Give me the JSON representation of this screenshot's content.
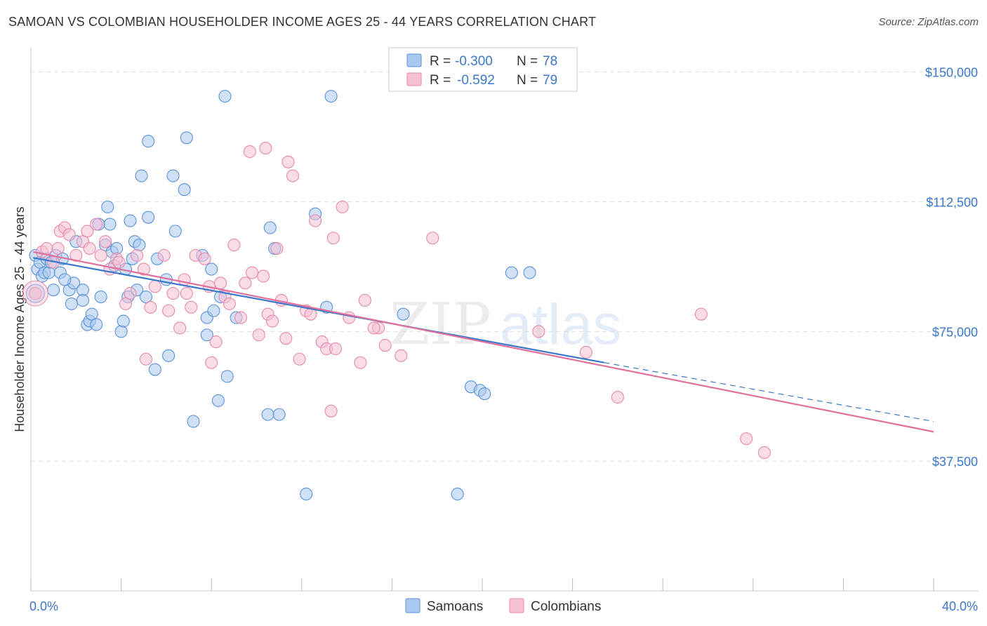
{
  "header": {
    "title": "SAMOAN VS COLOMBIAN HOUSEHOLDER INCOME AGES 25 - 44 YEARS CORRELATION CHART",
    "source": "Source: ZipAtlas.com"
  },
  "watermark": {
    "part1": "ZIP",
    "part2": "atlas"
  },
  "legend_box": {
    "rows": [
      {
        "r_label": "R = ",
        "r_value": "-0.300",
        "n_label": "N = ",
        "n_value": "78"
      },
      {
        "r_label": "R = ",
        "r_value": "-0.592",
        "n_label": "N = ",
        "n_value": "79"
      }
    ]
  },
  "bottom_legend": {
    "items": [
      "Samoans",
      "Colombians"
    ]
  },
  "colors": {
    "samoans_fill": "#a9c8ef",
    "samoans_stroke": "#5b93d9",
    "samoans_line": "#3a78c9",
    "colombians_fill": "#f6c0d3",
    "colombians_stroke": "#e58aac",
    "colombians_line": "#e0709a",
    "grid": "#dddddd",
    "axis_text": "#3a78c9"
  },
  "chart_data": {
    "type": "scatter",
    "title": "SAMOAN VS COLOMBIAN HOUSEHOLDER INCOME AGES 25 - 44 YEARS CORRELATION CHART",
    "xlabel": "",
    "ylabel": "Householder Income Ages 25 - 44 years",
    "xlim": [
      0,
      40
    ],
    "ylim": [
      0,
      155000
    ],
    "x_tick_labels": [
      "0.0%",
      "40.0%"
    ],
    "y_ticks": [
      37500,
      75000,
      112500,
      150000
    ],
    "y_tick_labels": [
      "$37,500",
      "$75,000",
      "$112,500",
      "$150,000"
    ],
    "grid": true,
    "legend_position": "top-center",
    "series": [
      {
        "name": "Samoans",
        "R": -0.3,
        "N": 78,
        "trend": {
          "x": [
            0.1,
            25.4
          ],
          "y": [
            96300,
            66000
          ],
          "dashed_to": [
            40.0,
            49000
          ]
        },
        "points": [
          [
            0.2,
            97000
          ],
          [
            0.3,
            93000
          ],
          [
            0.4,
            95000
          ],
          [
            0.5,
            91000
          ],
          [
            0.6,
            92000
          ],
          [
            0.7,
            96000
          ],
          [
            0.8,
            92000
          ],
          [
            0.9,
            95000
          ],
          [
            1.0,
            87000
          ],
          [
            1.1,
            97000
          ],
          [
            1.3,
            92000
          ],
          [
            1.4,
            96000
          ],
          [
            1.7,
            87000
          ],
          [
            1.8,
            83000
          ],
          [
            1.9,
            89000
          ],
          [
            2.0,
            101000
          ],
          [
            2.3,
            87000
          ],
          [
            2.3,
            84000
          ],
          [
            2.5,
            77000
          ],
          [
            2.6,
            78000
          ],
          [
            2.7,
            80000
          ],
          [
            2.9,
            77000
          ],
          [
            3.1,
            85000
          ],
          [
            3.3,
            100000
          ],
          [
            3.4,
            111000
          ],
          [
            3.5,
            106000
          ],
          [
            3.6,
            98000
          ],
          [
            3.7,
            94000
          ],
          [
            3.8,
            99000
          ],
          [
            4.0,
            75000
          ],
          [
            4.1,
            78000
          ],
          [
            4.4,
            107000
          ],
          [
            4.5,
            96000
          ],
          [
            4.3,
            85000
          ],
          [
            4.7,
            87000
          ],
          [
            4.6,
            101000
          ],
          [
            5.1,
            85000
          ],
          [
            4.9,
            120000
          ],
          [
            5.2,
            108000
          ],
          [
            5.6,
            96000
          ],
          [
            5.5,
            64000
          ],
          [
            5.2,
            130000
          ],
          [
            6.0,
            90000
          ],
          [
            6.1,
            68000
          ],
          [
            6.3,
            120000
          ],
          [
            6.4,
            104000
          ],
          [
            6.9,
            131000
          ],
          [
            7.2,
            49000
          ],
          [
            7.6,
            97000
          ],
          [
            7.8,
            79000
          ],
          [
            7.8,
            74000
          ],
          [
            8.0,
            93000
          ],
          [
            8.1,
            81000
          ],
          [
            8.3,
            55000
          ],
          [
            8.4,
            85000
          ],
          [
            8.6,
            143000
          ],
          [
            8.7,
            62000
          ],
          [
            9.1,
            79000
          ],
          [
            10.5,
            51000
          ],
          [
            10.6,
            105000
          ],
          [
            10.8,
            99000
          ],
          [
            11.0,
            51000
          ],
          [
            12.2,
            28000
          ],
          [
            12.6,
            109000
          ],
          [
            13.1,
            82000
          ],
          [
            13.3,
            143000
          ],
          [
            16.5,
            80000
          ],
          [
            18.9,
            28000
          ],
          [
            19.5,
            59000
          ],
          [
            19.9,
            58000
          ],
          [
            20.1,
            57000
          ],
          [
            21.3,
            92000
          ],
          [
            22.1,
            92000
          ],
          [
            4.8,
            100000
          ],
          [
            3.0,
            106000
          ],
          [
            6.8,
            116000
          ],
          [
            4.2,
            93000
          ],
          [
            1.5,
            90000
          ]
        ]
      },
      {
        "name": "Colombians",
        "R": -0.592,
        "N": 79,
        "trend": {
          "x": [
            0.1,
            40.0
          ],
          "y": [
            98000,
            46000
          ]
        },
        "points": [
          [
            0.2,
            86000
          ],
          [
            0.5,
            98000
          ],
          [
            0.7,
            99000
          ],
          [
            1.0,
            95000
          ],
          [
            1.2,
            99000
          ],
          [
            1.3,
            104000
          ],
          [
            1.5,
            105000
          ],
          [
            1.7,
            103000
          ],
          [
            2.0,
            97000
          ],
          [
            2.3,
            101000
          ],
          [
            2.5,
            104000
          ],
          [
            2.6,
            99000
          ],
          [
            2.9,
            106000
          ],
          [
            3.1,
            97000
          ],
          [
            3.3,
            101000
          ],
          [
            3.5,
            93000
          ],
          [
            3.8,
            96000
          ],
          [
            4.2,
            83000
          ],
          [
            4.4,
            86000
          ],
          [
            4.7,
            97000
          ],
          [
            5.0,
            93000
          ],
          [
            5.1,
            67000
          ],
          [
            5.3,
            82000
          ],
          [
            5.5,
            88000
          ],
          [
            5.9,
            97000
          ],
          [
            6.1,
            81000
          ],
          [
            6.3,
            86000
          ],
          [
            6.6,
            76000
          ],
          [
            6.8,
            90000
          ],
          [
            6.9,
            86000
          ],
          [
            7.1,
            82000
          ],
          [
            7.3,
            97000
          ],
          [
            7.7,
            96000
          ],
          [
            7.9,
            88000
          ],
          [
            8.0,
            66000
          ],
          [
            8.2,
            72000
          ],
          [
            8.4,
            89000
          ],
          [
            8.6,
            85000
          ],
          [
            8.8,
            83000
          ],
          [
            9.0,
            100000
          ],
          [
            9.3,
            79000
          ],
          [
            9.5,
            89000
          ],
          [
            9.8,
            92000
          ],
          [
            10.1,
            74000
          ],
          [
            10.3,
            91000
          ],
          [
            10.5,
            80000
          ],
          [
            10.7,
            78000
          ],
          [
            10.9,
            99000
          ],
          [
            11.1,
            84000
          ],
          [
            11.3,
            73000
          ],
          [
            11.6,
            120000
          ],
          [
            11.9,
            67000
          ],
          [
            12.2,
            81000
          ],
          [
            12.4,
            80000
          ],
          [
            12.6,
            107000
          ],
          [
            12.9,
            72000
          ],
          [
            13.1,
            70000
          ],
          [
            13.3,
            52000
          ],
          [
            13.5,
            70000
          ],
          [
            13.8,
            111000
          ],
          [
            14.1,
            79000
          ],
          [
            14.6,
            66000
          ],
          [
            14.8,
            84000
          ],
          [
            15.4,
            76000
          ],
          [
            15.7,
            71000
          ],
          [
            16.4,
            68000
          ],
          [
            17.8,
            102000
          ],
          [
            22.5,
            75000
          ],
          [
            24.6,
            69000
          ],
          [
            26.0,
            56000
          ],
          [
            29.7,
            80000
          ],
          [
            31.7,
            44000
          ],
          [
            32.5,
            40000
          ],
          [
            10.4,
            128000
          ],
          [
            11.4,
            124000
          ],
          [
            13.4,
            102000
          ],
          [
            9.7,
            127000
          ],
          [
            15.2,
            76000
          ],
          [
            3.9,
            95000
          ]
        ]
      }
    ]
  }
}
